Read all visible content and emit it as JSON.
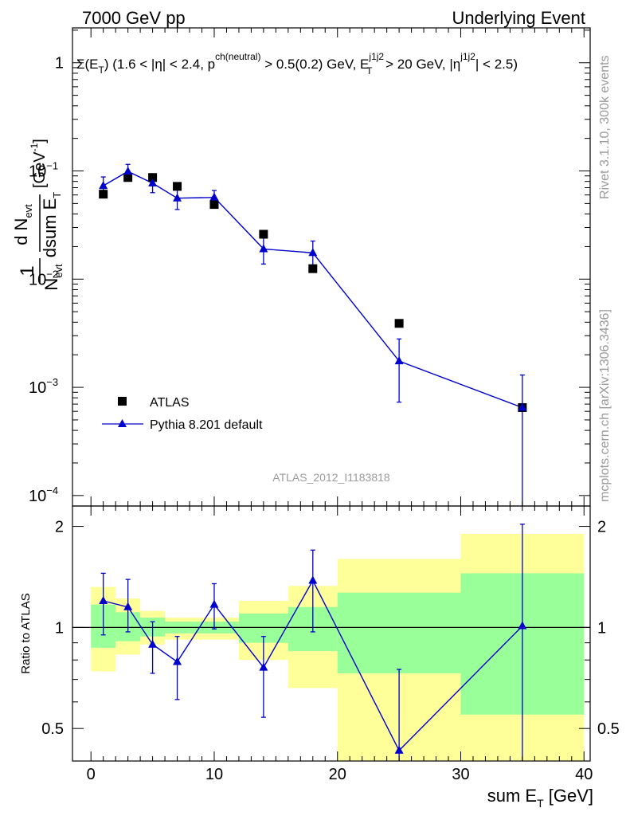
{
  "header": {
    "left": "7000 GeV pp",
    "right": "Underlying Event"
  },
  "side": {
    "rivet": "Rivet 3.1.10,  300k events",
    "mcplots": "mcplots.cern.ch [arXiv:1306.3436]"
  },
  "chart_data": {
    "type": "scatter",
    "title": "Σ(E_T) (1.6 < |η| < 2.4, p_T^ch(neutral) > 0.5(0.2) GeV, E_T^j1j2 > 20 GeV, |η^j1j2| < 2.5)",
    "title_parts": {
      "a": "Σ(E",
      "b": "T",
      "c": ") (1.6 < |η| < 2.4, p",
      "d": "ch(neutral)",
      "e": " > 0.5(0.2) GeV, E",
      "f": "j1j2",
      "g": "T",
      "h": " > 20 GeV, |η",
      "i": "j1j2",
      "j": "| < 2.5)"
    },
    "watermark": "ATLAS_2012_I1183818",
    "xlabel": "sum E_T [GeV]",
    "xlabel_parts": {
      "main": "sum E",
      "sub": "T",
      "unit": " [GeV]"
    },
    "ylabel_parts": {
      "one": "1",
      "n": "N",
      "n_sub": "evt",
      "d_n": "d N",
      "dn_sub": "evt",
      "dsum": "dsum E",
      "dsum_sub": "T",
      "unit": "[GeV",
      "unit_exp": "-1",
      "unit_close": "]"
    },
    "ratio_ylabel": "Ratio to ATLAS",
    "xlim": [
      -1.5,
      40.5
    ],
    "ylim": [
      8e-05,
      2.1
    ],
    "ratio_ylim": [
      0.4,
      2.3
    ],
    "x_ticks": [
      "0",
      "10",
      "20",
      "30",
      "40"
    ],
    "y_ticks": [
      {
        "mant": "1",
        "exp": ""
      },
      {
        "mant": "10",
        "exp": "−1"
      },
      {
        "mant": "10",
        "exp": "−2"
      },
      {
        "mant": "10",
        "exp": "−3"
      },
      {
        "mant": "10",
        "exp": "−4"
      }
    ],
    "ratio_ticks": [
      "2",
      "1",
      "0.5"
    ],
    "bin_edges": [
      0,
      2,
      4,
      6,
      8,
      12,
      16,
      20,
      30,
      40
    ],
    "series": [
      {
        "name": "ATLAS",
        "color": "#000000",
        "marker": "square",
        "x": [
          1,
          3,
          5,
          7,
          10,
          14,
          18,
          25,
          35
        ],
        "values": [
          0.061,
          0.087,
          0.087,
          0.072,
          0.049,
          0.026,
          0.0125,
          0.0039,
          0.00065
        ]
      },
      {
        "name": "Pythia 8.201 default",
        "color": "#0000cc",
        "marker": "triangle",
        "x": [
          1,
          3,
          5,
          7,
          10,
          14,
          18,
          25,
          35
        ],
        "values": [
          0.073,
          0.099,
          0.077,
          0.056,
          0.057,
          0.019,
          0.0175,
          0.00175,
          0.00065
        ],
        "err_low": [
          0.058,
          0.085,
          0.063,
          0.044,
          0.049,
          0.0138,
          0.0128,
          0.00073,
          5e-05
        ],
        "err_high": [
          0.088,
          0.115,
          0.091,
          0.068,
          0.066,
          0.0244,
          0.0225,
          0.0028,
          0.0013
        ]
      }
    ],
    "ratio": {
      "values": [
        1.2,
        1.15,
        0.89,
        0.79,
        1.17,
        0.76,
        1.38,
        0.43,
        1.01
      ],
      "err_low": [
        0.95,
        0.97,
        0.73,
        0.61,
        0.99,
        0.54,
        0.97,
        0.2,
        0.2
      ],
      "err_high": [
        1.45,
        1.39,
        1.04,
        0.94,
        1.35,
        0.94,
        1.7,
        0.75,
        2.03
      ],
      "band_green": [
        [
          0.87,
          1.17
        ],
        [
          0.91,
          1.11
        ],
        [
          0.94,
          1.07
        ],
        [
          0.96,
          1.04
        ],
        [
          0.96,
          1.04
        ],
        [
          0.9,
          1.1
        ],
        [
          0.85,
          1.15
        ],
        [
          0.73,
          1.27
        ],
        [
          0.55,
          1.45
        ]
      ],
      "band_yellow": [
        [
          0.74,
          1.32
        ],
        [
          0.83,
          1.22
        ],
        [
          0.89,
          1.12
        ],
        [
          0.92,
          1.07
        ],
        [
          0.92,
          1.07
        ],
        [
          0.8,
          1.2
        ],
        [
          0.66,
          1.33
        ],
        [
          0.37,
          1.6
        ],
        [
          0.37,
          1.9
        ]
      ]
    }
  }
}
